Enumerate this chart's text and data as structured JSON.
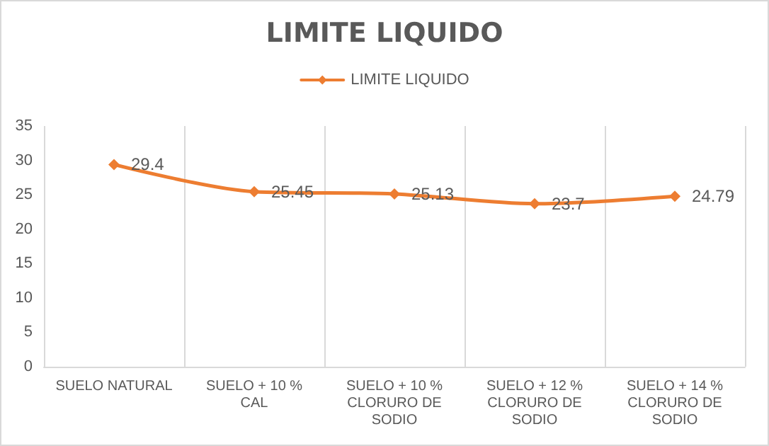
{
  "chart_data": {
    "type": "line",
    "title": "LIMITE LIQUIDO",
    "categories": [
      "SUELO NATURAL",
      "SUELO + 10 % CAL",
      "SUELO + 10 % CLORURO DE SODIO",
      "SUELO + 12 % CLORURO DE SODIO",
      "SUELO + 14 % CLORURO DE SODIO"
    ],
    "series": [
      {
        "name": "LIMITE LIQUIDO",
        "color": "#ed7d31",
        "values": [
          29.4,
          25.45,
          25.13,
          23.7,
          24.79
        ]
      }
    ],
    "ylim": [
      0,
      35
    ],
    "yticks": [
      0,
      5,
      10,
      15,
      20,
      25,
      30,
      35
    ],
    "grid": "x",
    "legend": "top",
    "marker": "diamond",
    "line_style": "solid",
    "data_labels": true
  }
}
